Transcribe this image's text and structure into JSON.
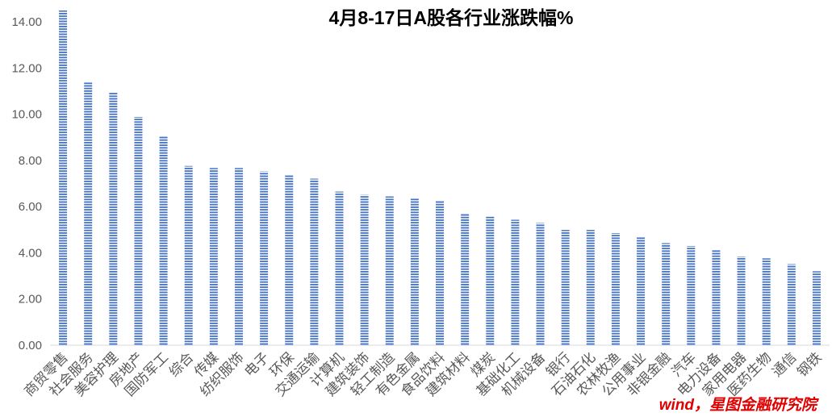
{
  "chart_data": {
    "type": "bar",
    "title": "4月8-17日A股各行业涨跌幅%",
    "categories": [
      "商贸零售",
      "社会服务",
      "美容护理",
      "房地产",
      "国防军工",
      "综合",
      "传媒",
      "纺织服饰",
      "电子",
      "环保",
      "交通运输",
      "计算机",
      "建筑装饰",
      "轻工制造",
      "有色金属",
      "食品饮料",
      "建筑材料",
      "煤炭",
      "基础化工",
      "机械设备",
      "银行",
      "石油石化",
      "农林牧渔",
      "公用事业",
      "非银金融",
      "汽车",
      "电力设备",
      "家用电器",
      "医药生物",
      "通信",
      "钢铁"
    ],
    "values": [
      14.49,
      11.38,
      10.94,
      9.88,
      9.04,
      7.76,
      7.67,
      7.67,
      7.52,
      7.36,
      7.21,
      6.65,
      6.51,
      6.44,
      6.35,
      6.25,
      5.69,
      5.57,
      5.43,
      5.29,
      4.99,
      4.99,
      4.85,
      4.7,
      4.42,
      4.29,
      4.12,
      3.84,
      3.76,
      3.51,
      3.2
    ],
    "ylim": [
      0,
      14.5
    ],
    "yticks": [
      0,
      2,
      4,
      6,
      8,
      10,
      12,
      14
    ],
    "ytick_labels": [
      "0.00",
      "2.00",
      "4.00",
      "6.00",
      "8.00",
      "10.00",
      "12.00",
      "14.00"
    ],
    "grid": false,
    "legend": "none",
    "annotation": "wind，星图金融研究院"
  },
  "colors": {
    "bar": "#4472C4",
    "annotation": "#E00000",
    "title": "#000000",
    "axis_text": "#595959",
    "axis_line": "#D9D9D9"
  }
}
